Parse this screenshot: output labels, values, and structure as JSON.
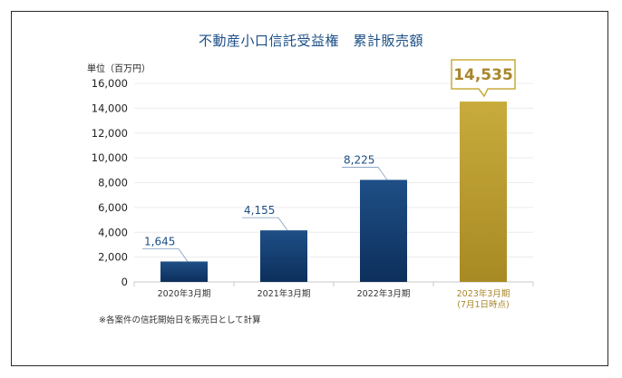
{
  "chart_data": {
    "type": "bar",
    "title": "不動産小口信託受益権　累計販売額",
    "unit_label": "単位（百万円）",
    "categories": [
      {
        "line1": "2020年3月期",
        "line2": ""
      },
      {
        "line1": "2021年3月期",
        "line2": ""
      },
      {
        "line1": "2022年3月期",
        "line2": ""
      },
      {
        "line1": "2023年3月期",
        "line2": "(7月1日時点)"
      }
    ],
    "values": [
      1645,
      4155,
      8225,
      14535
    ],
    "value_labels": [
      "1,645",
      "4,155",
      "8,225",
      "14,535"
    ],
    "highlight_index": 3,
    "ylim": [
      0,
      16000
    ],
    "yticks": [
      0,
      2000,
      4000,
      6000,
      8000,
      10000,
      12000,
      14000,
      16000
    ],
    "ytick_labels": [
      "0",
      "2,000",
      "4,000",
      "6,000",
      "8,000",
      "10,000",
      "12,000",
      "14,000",
      "16,000"
    ],
    "grid": true,
    "colors": {
      "bar_top": "#1e4f86",
      "bar_bottom": "#0d2f5c",
      "highlight_top": "#c8ab3c",
      "highlight_bottom": "#a88a24",
      "label": "#1c4f86",
      "highlight_label": "#a8862a"
    }
  },
  "footnote": "※各案件の信託開始日を販売日として計算"
}
